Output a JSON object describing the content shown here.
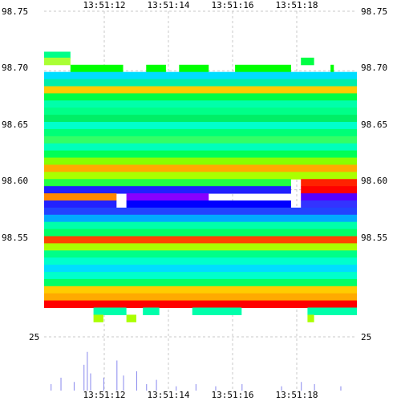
{
  "chart_data": {
    "type": "heatmap",
    "title": "",
    "xlabel": "",
    "ylabel": "",
    "time_ticks": [
      "13:51:12",
      "13:51:14",
      "13:51:16",
      "13:51:18"
    ],
    "price_ticks": [
      "98.75",
      "98.70",
      "98.65",
      "98.60",
      "98.55"
    ],
    "price_range": [
      98.5,
      98.75
    ],
    "volume_tick": "25",
    "volume_range": [
      0,
      25
    ],
    "grid": true,
    "color_scale": [
      "#00ffcc",
      "#00ff66",
      "#ffdd00",
      "#ff2200",
      "#2020ff",
      "#8800ff"
    ],
    "rows": [
      {
        "price": 98.713,
        "segments": [
          [
            0,
            8,
            "#00ff88"
          ]
        ]
      },
      {
        "price": 98.708,
        "segments": [
          [
            0,
            8,
            "#aaff33"
          ],
          [
            78,
            82,
            "#00ff44"
          ]
        ]
      },
      {
        "price": 98.702,
        "segments": [
          [
            8,
            24,
            "#00ff00"
          ],
          [
            31,
            37,
            "#00ff00"
          ],
          [
            41,
            50,
            "#00ff00"
          ],
          [
            58,
            75,
            "#00ff00"
          ],
          [
            87,
            88,
            "#00ff00"
          ]
        ]
      },
      {
        "price": 98.696,
        "segments": [
          [
            0,
            95,
            "#00ddff"
          ]
        ]
      },
      {
        "price": 98.69,
        "segments": [
          [
            0,
            95,
            "#00eeaa"
          ]
        ]
      },
      {
        "price": 98.684,
        "segments": [
          [
            0,
            95,
            "#ffcc00"
          ]
        ]
      },
      {
        "price": 98.678,
        "segments": [
          [
            0,
            95,
            "#00ff44"
          ]
        ]
      },
      {
        "price": 98.672,
        "segments": [
          [
            0,
            95,
            "#00ffaa"
          ]
        ]
      },
      {
        "price": 98.666,
        "segments": [
          [
            0,
            95,
            "#00ff88"
          ]
        ]
      },
      {
        "price": 98.66,
        "segments": [
          [
            0,
            95,
            "#00ee66"
          ]
        ]
      },
      {
        "price": 98.654,
        "segments": [
          [
            0,
            95,
            "#00ffcc"
          ]
        ]
      },
      {
        "price": 98.648,
        "segments": [
          [
            0,
            95,
            "#00ff77"
          ]
        ]
      },
      {
        "price": 98.642,
        "segments": [
          [
            0,
            95,
            "#33ff66"
          ]
        ]
      },
      {
        "price": 98.636,
        "segments": [
          [
            0,
            95,
            "#00ffbb"
          ]
        ]
      },
      {
        "price": 98.63,
        "segments": [
          [
            0,
            95,
            "#00ff55"
          ]
        ]
      },
      {
        "price": 98.624,
        "segments": [
          [
            0,
            95,
            "#88ff00"
          ]
        ]
      },
      {
        "price": 98.618,
        "segments": [
          [
            0,
            95,
            "#ffaa00"
          ]
        ]
      },
      {
        "price": 98.612,
        "segments": [
          [
            0,
            95,
            "#aaff00"
          ]
        ]
      },
      {
        "price": 98.606,
        "segments": [
          [
            0,
            75,
            "#22ff44"
          ],
          [
            78,
            95,
            "#ff2200"
          ]
        ]
      },
      {
        "price": 98.6,
        "segments": [
          [
            0,
            75,
            "#2020ff"
          ],
          [
            78,
            95,
            "#ff0000"
          ]
        ]
      },
      {
        "price": 98.594,
        "segments": [
          [
            0,
            22,
            "#ff8800"
          ],
          [
            25,
            50,
            "#8800ff"
          ],
          [
            78,
            95,
            "#5500ff"
          ]
        ]
      },
      {
        "price": 98.588,
        "segments": [
          [
            0,
            22,
            "#2222ff"
          ],
          [
            25,
            75,
            "#0000ff"
          ],
          [
            78,
            95,
            "#3333ff"
          ]
        ]
      },
      {
        "price": 98.582,
        "segments": [
          [
            0,
            95,
            "#2244ff"
          ]
        ]
      },
      {
        "price": 98.576,
        "segments": [
          [
            0,
            95,
            "#00aaff"
          ]
        ]
      },
      {
        "price": 98.57,
        "segments": [
          [
            0,
            95,
            "#00ffaa"
          ]
        ]
      },
      {
        "price": 98.564,
        "segments": [
          [
            0,
            95,
            "#00ff66"
          ]
        ]
      },
      {
        "price": 98.558,
        "segments": [
          [
            0,
            95,
            "#ff4400"
          ]
        ]
      },
      {
        "price": 98.552,
        "segments": [
          [
            0,
            95,
            "#aaff00"
          ]
        ]
      },
      {
        "price": 98.546,
        "segments": [
          [
            0,
            95,
            "#00ff88"
          ]
        ]
      },
      {
        "price": 98.54,
        "segments": [
          [
            0,
            95,
            "#00ffcc"
          ]
        ]
      },
      {
        "price": 98.534,
        "segments": [
          [
            0,
            95,
            "#00ddff"
          ]
        ]
      },
      {
        "price": 98.528,
        "segments": [
          [
            0,
            95,
            "#00ffcc"
          ]
        ]
      },
      {
        "price": 98.522,
        "segments": [
          [
            0,
            95,
            "#00ff66"
          ]
        ]
      },
      {
        "price": 98.516,
        "segments": [
          [
            0,
            95,
            "#ffcc00"
          ]
        ]
      },
      {
        "price": 98.51,
        "segments": [
          [
            0,
            95,
            "#ffaa00"
          ]
        ]
      },
      {
        "price": 98.504,
        "segments": [
          [
            0,
            95,
            "#ff0000"
          ]
        ]
      },
      {
        "price": 98.498,
        "segments": [
          [
            15,
            25,
            "#00ffaa"
          ],
          [
            30,
            35,
            "#00ffaa"
          ],
          [
            45,
            60,
            "#00ffaa"
          ],
          [
            80,
            95,
            "#00ffaa"
          ]
        ]
      },
      {
        "price": 98.492,
        "segments": [
          [
            15,
            18,
            "#aaff00"
          ],
          [
            25,
            28,
            "#aaff00"
          ],
          [
            80,
            82,
            "#aaff00"
          ]
        ]
      }
    ],
    "volume": [
      {
        "t": 2,
        "v": 3
      },
      {
        "t": 5,
        "v": 6
      },
      {
        "t": 9,
        "v": 4
      },
      {
        "t": 12,
        "v": 12
      },
      {
        "t": 13,
        "v": 18
      },
      {
        "t": 14,
        "v": 8
      },
      {
        "t": 18,
        "v": 6
      },
      {
        "t": 22,
        "v": 14
      },
      {
        "t": 24,
        "v": 7
      },
      {
        "t": 28,
        "v": 9
      },
      {
        "t": 31,
        "v": 3
      },
      {
        "t": 34,
        "v": 5
      },
      {
        "t": 40,
        "v": 2
      },
      {
        "t": 46,
        "v": 3
      },
      {
        "t": 52,
        "v": 2
      },
      {
        "t": 60,
        "v": 3
      },
      {
        "t": 72,
        "v": 2
      },
      {
        "t": 78,
        "v": 4
      },
      {
        "t": 82,
        "v": 3
      },
      {
        "t": 90,
        "v": 2
      }
    ]
  },
  "colors": {
    "grid": "#c8c8c8",
    "volume": "#8888ee",
    "axis_text": "#000000"
  }
}
